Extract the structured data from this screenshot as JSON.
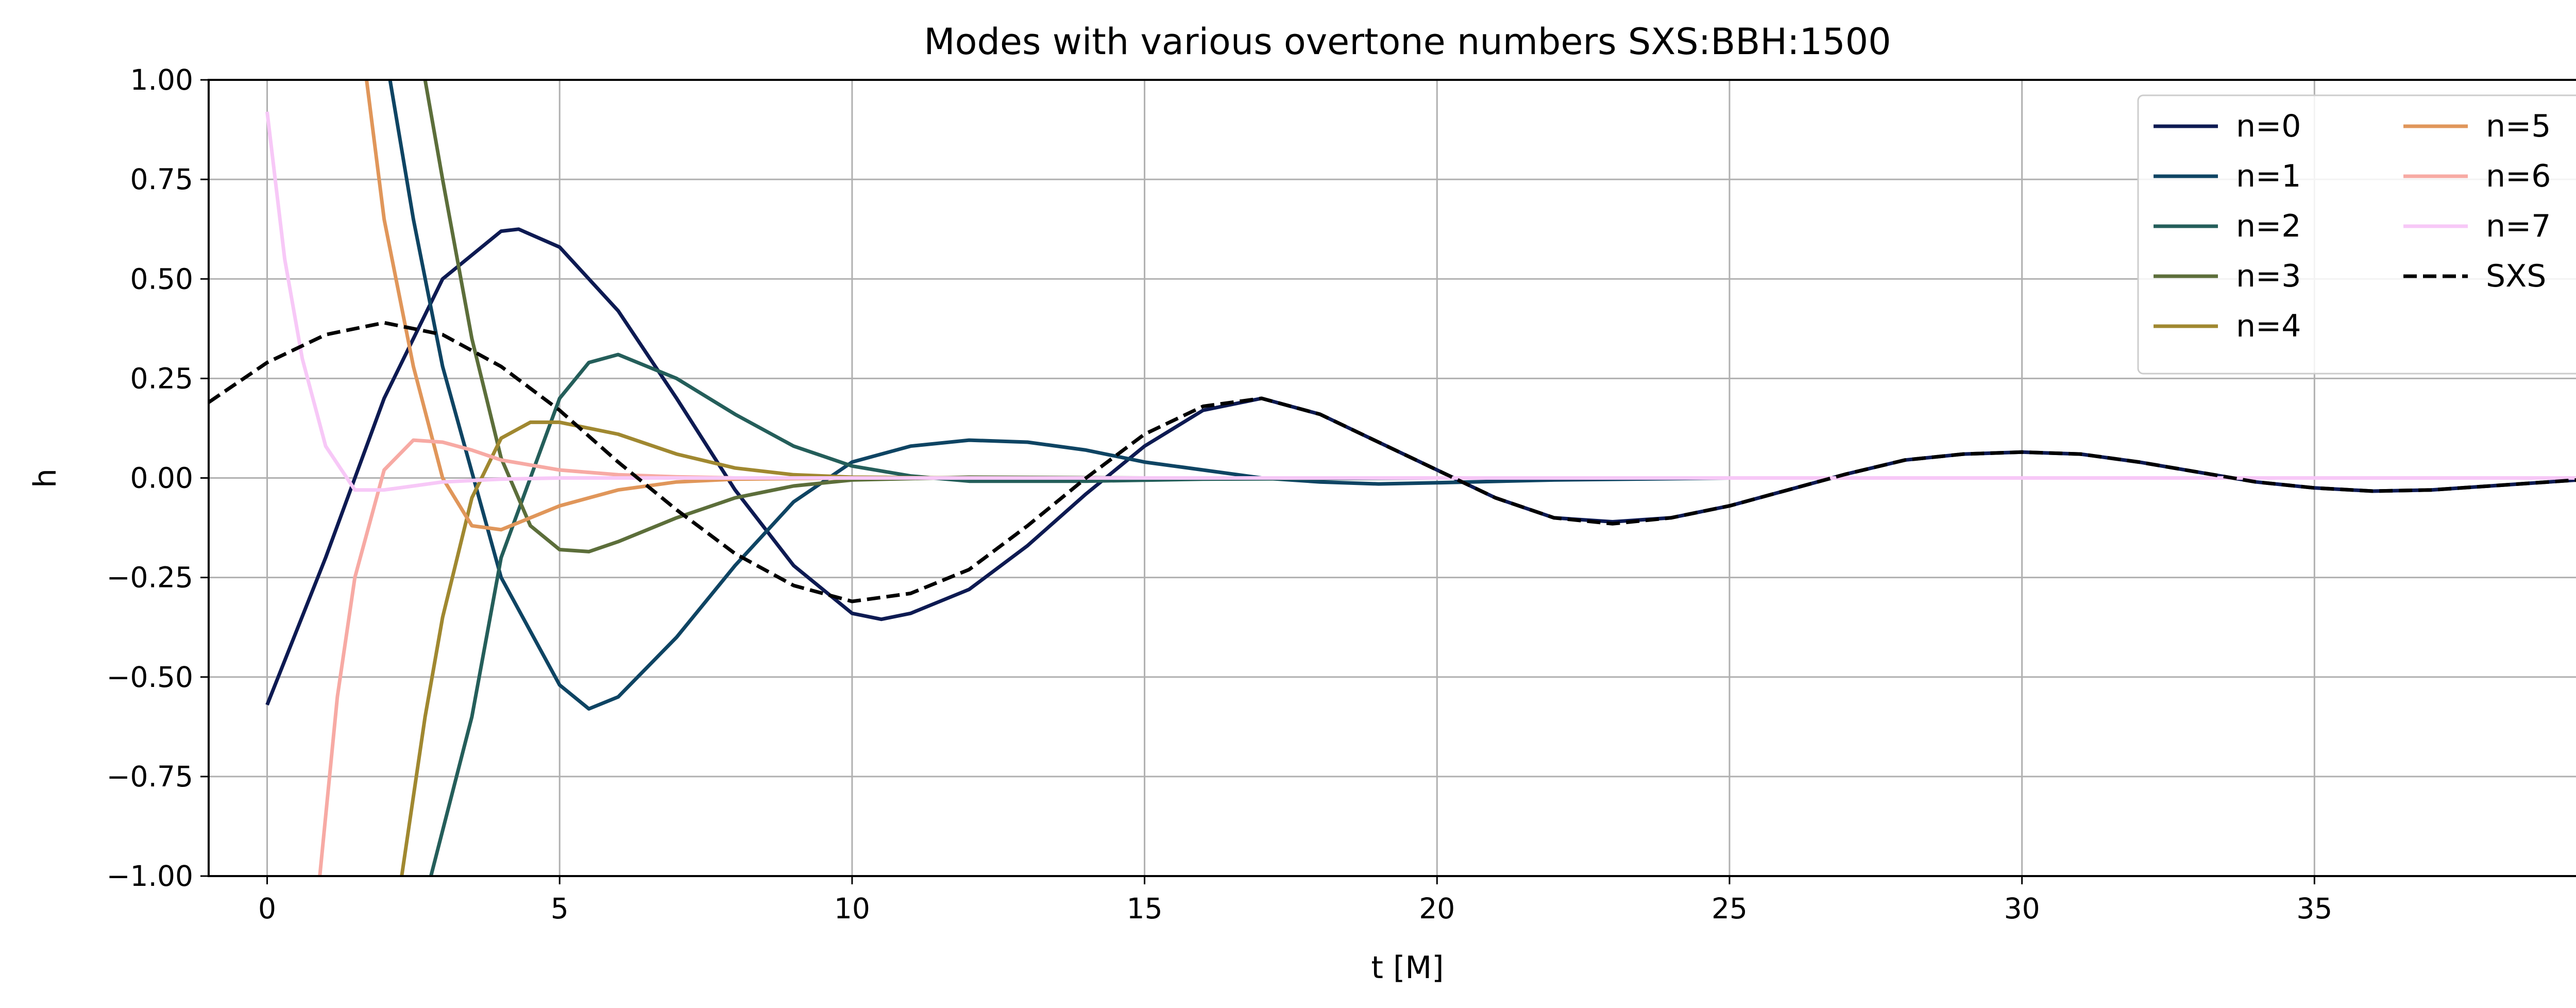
{
  "chart_data": {
    "type": "line",
    "title": "Modes with various overtone numbers SXS:BBH:1500",
    "xlabel": "t [M]",
    "ylabel": "h",
    "xlim": [
      -1,
      40
    ],
    "ylim": [
      -1.0,
      1.0
    ],
    "x_ticks": [
      0,
      5,
      10,
      15,
      20,
      25,
      30,
      35,
      40
    ],
    "y_ticks": [
      -1.0,
      -0.75,
      -0.5,
      -0.25,
      0.0,
      0.25,
      0.5,
      0.75,
      1.0
    ],
    "x_tick_labels": [
      "0",
      "5",
      "10",
      "15",
      "20",
      "25",
      "30",
      "35",
      "40"
    ],
    "y_tick_labels": [
      "−1.00",
      "−0.75",
      "−0.50",
      "−0.25",
      "0.00",
      "0.25",
      "0.50",
      "0.75",
      "1.00"
    ],
    "grid": true,
    "legend": {
      "placement": "top-right",
      "columns": 2
    },
    "series": [
      {
        "name": "n=0",
        "color": "#0d1a52",
        "dash": "solid",
        "points": [
          [
            0,
            -0.57
          ],
          [
            1,
            -0.2
          ],
          [
            2,
            0.2
          ],
          [
            3,
            0.5
          ],
          [
            4,
            0.62
          ],
          [
            4.3,
            0.625
          ],
          [
            5,
            0.58
          ],
          [
            6,
            0.42
          ],
          [
            7,
            0.2
          ],
          [
            8,
            -0.03
          ],
          [
            9,
            -0.22
          ],
          [
            10,
            -0.34
          ],
          [
            10.5,
            -0.355
          ],
          [
            11,
            -0.34
          ],
          [
            12,
            -0.28
          ],
          [
            13,
            -0.17
          ],
          [
            14,
            -0.04
          ],
          [
            15,
            0.08
          ],
          [
            16,
            0.17
          ],
          [
            17,
            0.2
          ],
          [
            18,
            0.16
          ],
          [
            19,
            0.09
          ],
          [
            20,
            0.02
          ],
          [
            21,
            -0.05
          ],
          [
            22,
            -0.1
          ],
          [
            23,
            -0.11
          ],
          [
            24,
            -0.1
          ],
          [
            25,
            -0.07
          ],
          [
            26,
            -0.03
          ],
          [
            27,
            0.01
          ],
          [
            28,
            0.045
          ],
          [
            29,
            0.06
          ],
          [
            30,
            0.065
          ],
          [
            31,
            0.06
          ],
          [
            32,
            0.04
          ],
          [
            33,
            0.015
          ],
          [
            34,
            -0.01
          ],
          [
            35,
            -0.025
          ],
          [
            36,
            -0.033
          ],
          [
            37,
            -0.03
          ],
          [
            38,
            -0.02
          ],
          [
            39,
            -0.01
          ],
          [
            40,
            0.0
          ]
        ]
      },
      {
        "name": "n=1",
        "color": "#0e4463",
        "dash": "solid",
        "points": [
          [
            2.1,
            1.0
          ],
          [
            2.5,
            0.65
          ],
          [
            3,
            0.28
          ],
          [
            4,
            -0.25
          ],
          [
            5,
            -0.52
          ],
          [
            5.5,
            -0.58
          ],
          [
            6,
            -0.55
          ],
          [
            7,
            -0.4
          ],
          [
            8,
            -0.22
          ],
          [
            9,
            -0.06
          ],
          [
            10,
            0.04
          ],
          [
            11,
            0.08
          ],
          [
            12,
            0.095
          ],
          [
            13,
            0.09
          ],
          [
            14,
            0.07
          ],
          [
            15,
            0.04
          ],
          [
            16,
            0.02
          ],
          [
            17,
            0.0
          ],
          [
            18,
            -0.01
          ],
          [
            19,
            -0.015
          ],
          [
            20,
            -0.012
          ],
          [
            22,
            -0.005
          ],
          [
            25,
            0.0
          ],
          [
            40,
            0.0
          ]
        ]
      },
      {
        "name": "n=2",
        "color": "#245e5a",
        "dash": "solid",
        "points": [
          [
            2.8,
            -1.0
          ],
          [
            3.5,
            -0.6
          ],
          [
            4,
            -0.2
          ],
          [
            5,
            0.2
          ],
          [
            5.5,
            0.29
          ],
          [
            6,
            0.31
          ],
          [
            7,
            0.25
          ],
          [
            8,
            0.16
          ],
          [
            9,
            0.08
          ],
          [
            10,
            0.03
          ],
          [
            11,
            0.005
          ],
          [
            12,
            -0.008
          ],
          [
            14,
            -0.008
          ],
          [
            16,
            -0.003
          ],
          [
            20,
            0.0
          ],
          [
            40,
            0.0
          ]
        ]
      },
      {
        "name": "n=3",
        "color": "#5c6e3a",
        "dash": "solid",
        "points": [
          [
            2.7,
            1.0
          ],
          [
            3,
            0.75
          ],
          [
            3.5,
            0.35
          ],
          [
            4,
            0.05
          ],
          [
            4.5,
            -0.12
          ],
          [
            5,
            -0.18
          ],
          [
            5.5,
            -0.185
          ],
          [
            6,
            -0.16
          ],
          [
            7,
            -0.1
          ],
          [
            8,
            -0.05
          ],
          [
            9,
            -0.02
          ],
          [
            10,
            -0.005
          ],
          [
            12,
            0.002
          ],
          [
            15,
            0.0
          ],
          [
            40,
            0.0
          ]
        ]
      },
      {
        "name": "n=4",
        "color": "#a08830",
        "dash": "solid",
        "points": [
          [
            2.3,
            -1.0
          ],
          [
            2.7,
            -0.6
          ],
          [
            3,
            -0.35
          ],
          [
            3.5,
            -0.05
          ],
          [
            4,
            0.1
          ],
          [
            4.5,
            0.14
          ],
          [
            5,
            0.14
          ],
          [
            6,
            0.11
          ],
          [
            7,
            0.06
          ],
          [
            8,
            0.025
          ],
          [
            9,
            0.008
          ],
          [
            10,
            0.002
          ],
          [
            12,
            0.0
          ],
          [
            40,
            0.0
          ]
        ]
      },
      {
        "name": "n=5",
        "color": "#e0965a",
        "dash": "solid",
        "points": [
          [
            1.7,
            1.0
          ],
          [
            2,
            0.65
          ],
          [
            2.5,
            0.28
          ],
          [
            3,
            0.0
          ],
          [
            3.5,
            -0.12
          ],
          [
            4,
            -0.13
          ],
          [
            4.5,
            -0.1
          ],
          [
            5,
            -0.07
          ],
          [
            6,
            -0.03
          ],
          [
            7,
            -0.01
          ],
          [
            8,
            -0.003
          ],
          [
            10,
            0.0
          ],
          [
            40,
            0.0
          ]
        ]
      },
      {
        "name": "n=6",
        "color": "#f7aaa4",
        "dash": "solid",
        "points": [
          [
            0.9,
            -1.0
          ],
          [
            1.2,
            -0.55
          ],
          [
            1.5,
            -0.25
          ],
          [
            2,
            0.02
          ],
          [
            2.5,
            0.095
          ],
          [
            3,
            0.09
          ],
          [
            3.5,
            0.07
          ],
          [
            4,
            0.045
          ],
          [
            5,
            0.02
          ],
          [
            6,
            0.008
          ],
          [
            7,
            0.003
          ],
          [
            8,
            0.0
          ],
          [
            40,
            0.0
          ]
        ]
      },
      {
        "name": "n=7",
        "color": "#f7c8f7",
        "dash": "solid",
        "points": [
          [
            0,
            0.92
          ],
          [
            0.3,
            0.55
          ],
          [
            0.6,
            0.3
          ],
          [
            1,
            0.08
          ],
          [
            1.5,
            -0.03
          ],
          [
            2,
            -0.03
          ],
          [
            2.5,
            -0.02
          ],
          [
            3,
            -0.01
          ],
          [
            4,
            -0.003
          ],
          [
            5,
            0.0
          ],
          [
            40,
            0.0
          ]
        ]
      },
      {
        "name": "SXS",
        "color": "#000000",
        "dash": "dashed",
        "points": [
          [
            -1,
            0.19
          ],
          [
            0,
            0.29
          ],
          [
            1,
            0.36
          ],
          [
            2,
            0.39
          ],
          [
            3,
            0.36
          ],
          [
            4,
            0.28
          ],
          [
            5,
            0.17
          ],
          [
            6,
            0.04
          ],
          [
            7,
            -0.08
          ],
          [
            8,
            -0.19
          ],
          [
            9,
            -0.27
          ],
          [
            10,
            -0.31
          ],
          [
            11,
            -0.29
          ],
          [
            12,
            -0.23
          ],
          [
            13,
            -0.12
          ],
          [
            14,
            0.0
          ],
          [
            15,
            0.11
          ],
          [
            16,
            0.18
          ],
          [
            17,
            0.2
          ],
          [
            18,
            0.16
          ],
          [
            19,
            0.09
          ],
          [
            20,
            0.02
          ],
          [
            21,
            -0.05
          ],
          [
            22,
            -0.1
          ],
          [
            23,
            -0.115
          ],
          [
            24,
            -0.1
          ],
          [
            25,
            -0.07
          ],
          [
            26,
            -0.03
          ],
          [
            27,
            0.01
          ],
          [
            28,
            0.045
          ],
          [
            29,
            0.06
          ],
          [
            30,
            0.065
          ],
          [
            31,
            0.06
          ],
          [
            32,
            0.04
          ],
          [
            33,
            0.015
          ],
          [
            34,
            -0.01
          ],
          [
            35,
            -0.025
          ],
          [
            36,
            -0.033
          ],
          [
            37,
            -0.03
          ],
          [
            38,
            -0.02
          ],
          [
            39,
            -0.01
          ],
          [
            40,
            0.0
          ]
        ]
      }
    ]
  }
}
